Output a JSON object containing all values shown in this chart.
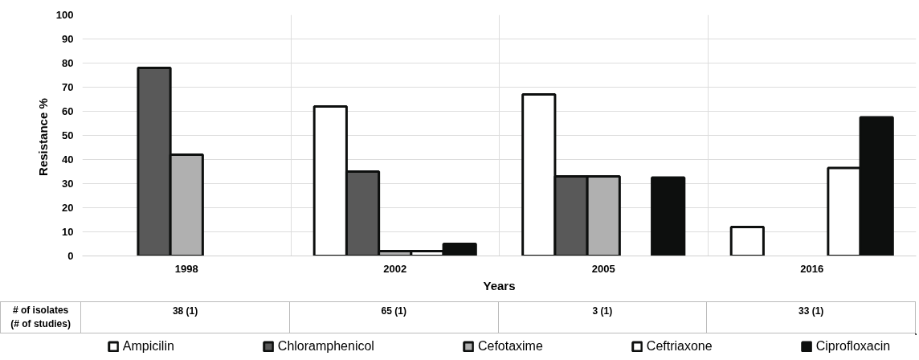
{
  "chart_data": {
    "type": "bar",
    "xlabel": "Years",
    "ylabel": "Resistance  %",
    "categories": [
      "1998",
      "2002",
      "2005",
      "2016"
    ],
    "series": [
      {
        "name": "Ampicilin",
        "color": "#ffffff",
        "values": [
          null,
          62,
          67,
          12
        ]
      },
      {
        "name": "Chloramphenicol",
        "color": "#595959",
        "values": [
          78,
          35,
          33,
          null
        ]
      },
      {
        "name": "Cefotaxime",
        "color": "#b0b0b0",
        "values": [
          42,
          2,
          33,
          null
        ]
      },
      {
        "name": "Ceftriaxone",
        "color": "#ffffff",
        "values": [
          null,
          2,
          null,
          36.5
        ]
      },
      {
        "name": "Ciprofloxacin",
        "color": "#0d0f0e",
        "values": [
          null,
          5,
          32.5,
          57.5
        ]
      }
    ],
    "ylim": [
      0,
      100
    ],
    "yticks": [
      0,
      10,
      20,
      30,
      40,
      50,
      60,
      70,
      80,
      90,
      100
    ],
    "grid": true,
    "legend": "bottom",
    "annotations": [
      "# of isolates\n(# of studies)",
      "38 (1)",
      "65 (1)",
      "3 (1)",
      "33 (1)"
    ]
  }
}
